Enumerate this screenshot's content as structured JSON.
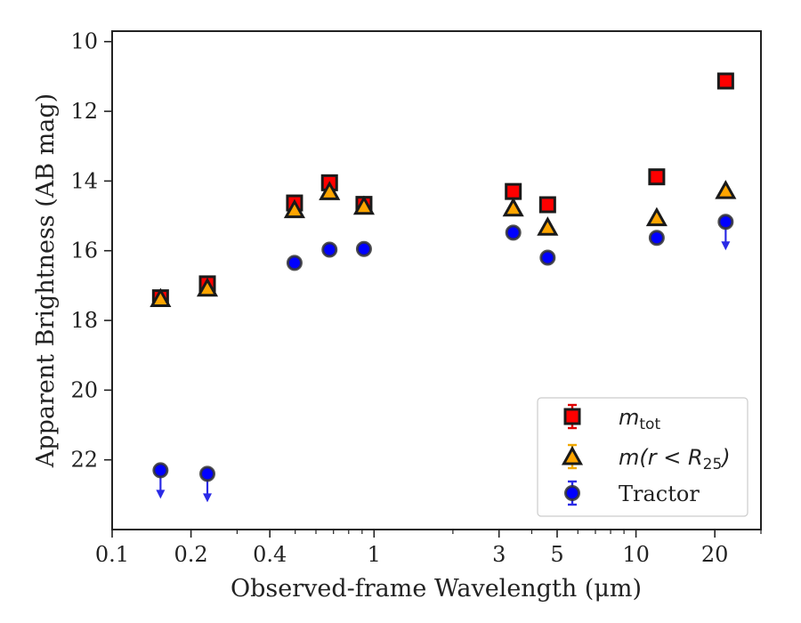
{
  "chart_data": {
    "type": "scatter",
    "title": "",
    "xlabel": "Observed-frame Wavelength (μm)",
    "ylabel": "Apparent Brightness (AB mag)",
    "xscale": "log",
    "xlim": [
      0.1,
      30
    ],
    "ylim": [
      24,
      9.7
    ],
    "y_inverted": true,
    "x_major_ticks": [
      0.1,
      0.2,
      0.4,
      1,
      3,
      5,
      10,
      20
    ],
    "x_tick_labels": [
      "0.1",
      "0.2",
      "0.4",
      "1",
      "3",
      "5",
      "10",
      "20"
    ],
    "y_ticks": [
      10,
      12,
      14,
      16,
      18,
      20,
      22
    ],
    "y_tick_labels": [
      "10",
      "12",
      "14",
      "16",
      "18",
      "20",
      "22"
    ],
    "legend_position": "lower-right",
    "series": [
      {
        "name": "m_tot",
        "legend_label_main": "m",
        "legend_label_sub": "tot",
        "marker": "square",
        "color": "#ff0000",
        "edge_color": "#1a1a1a",
        "points": [
          {
            "x": 0.153,
            "y": 17.35,
            "upper_limit": false
          },
          {
            "x": 0.231,
            "y": 16.95,
            "upper_limit": false
          },
          {
            "x": 0.497,
            "y": 14.63,
            "upper_limit": false
          },
          {
            "x": 0.676,
            "y": 14.05,
            "upper_limit": false
          },
          {
            "x": 0.915,
            "y": 14.67,
            "upper_limit": false
          },
          {
            "x": 3.4,
            "y": 14.3,
            "upper_limit": false
          },
          {
            "x": 4.6,
            "y": 14.68,
            "upper_limit": false
          },
          {
            "x": 12.0,
            "y": 13.88,
            "upper_limit": false
          },
          {
            "x": 22.0,
            "y": 11.13,
            "upper_limit": false
          }
        ]
      },
      {
        "name": "m(r < R_25)",
        "legend_label_main": "m(r < R",
        "legend_label_sub": "25",
        "legend_label_tail": ")",
        "marker": "triangle",
        "color": "#ffa500",
        "edge_color": "#1a1a1a",
        "points": [
          {
            "x": 0.153,
            "y": 17.4,
            "upper_limit": false
          },
          {
            "x": 0.231,
            "y": 17.1,
            "upper_limit": false
          },
          {
            "x": 0.497,
            "y": 14.85,
            "upper_limit": false
          },
          {
            "x": 0.676,
            "y": 14.33,
            "upper_limit": false
          },
          {
            "x": 0.915,
            "y": 14.75,
            "upper_limit": false
          },
          {
            "x": 3.4,
            "y": 14.8,
            "upper_limit": false
          },
          {
            "x": 4.6,
            "y": 15.35,
            "upper_limit": false
          },
          {
            "x": 12.0,
            "y": 15.08,
            "upper_limit": false
          },
          {
            "x": 22.0,
            "y": 14.3,
            "upper_limit": false
          }
        ]
      },
      {
        "name": "Tractor",
        "legend_label_main": "Tractor",
        "marker": "circle",
        "color": "#0000ff",
        "edge_color": "#333333",
        "points": [
          {
            "x": 0.153,
            "y": 22.3,
            "upper_limit": true
          },
          {
            "x": 0.231,
            "y": 22.4,
            "upper_limit": true
          },
          {
            "x": 0.497,
            "y": 16.35,
            "upper_limit": false
          },
          {
            "x": 0.676,
            "y": 15.97,
            "upper_limit": false
          },
          {
            "x": 0.915,
            "y": 15.95,
            "upper_limit": false
          },
          {
            "x": 3.4,
            "y": 15.48,
            "upper_limit": false
          },
          {
            "x": 4.6,
            "y": 16.2,
            "upper_limit": false
          },
          {
            "x": 12.0,
            "y": 15.63,
            "upper_limit": false
          },
          {
            "x": 22.0,
            "y": 15.17,
            "upper_limit": true
          }
        ]
      }
    ]
  }
}
